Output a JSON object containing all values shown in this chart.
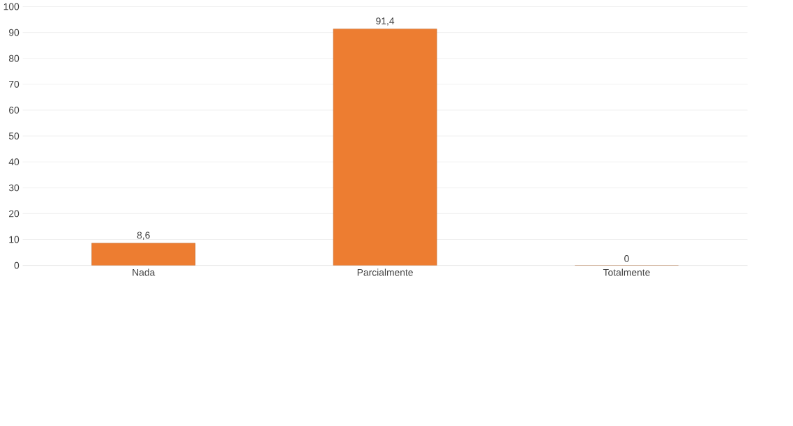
{
  "chart_data": {
    "type": "bar",
    "categories": [
      "Nada",
      "Parcialmente",
      "Totalmente"
    ],
    "values": [
      8.6,
      91.4,
      0
    ],
    "value_labels": [
      "8,6",
      "91,4",
      "0"
    ],
    "color": "#ed7d31",
    "ylim": [
      0,
      100
    ],
    "yticks": [
      0,
      10,
      20,
      30,
      40,
      50,
      60,
      70,
      80,
      90,
      100
    ],
    "grid": "y"
  }
}
